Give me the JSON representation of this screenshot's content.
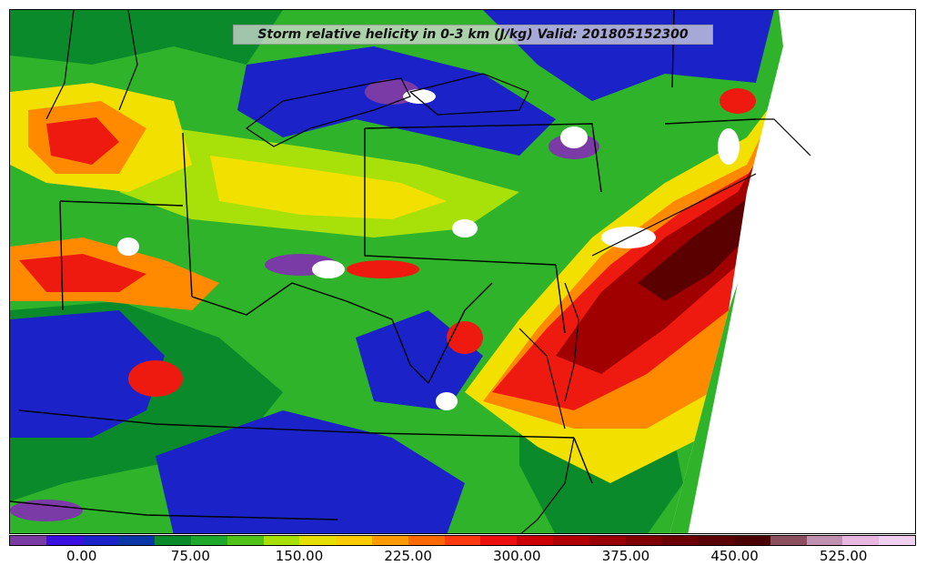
{
  "title": "Storm relative helicity in 0-3 km (J/kg) Valid: 201805152300",
  "colorbar": {
    "colors": [
      "#7a3ba6",
      "#3a10e0",
      "#1a22c8",
      "#0a36a8",
      "#0a8a2a",
      "#1fa82e",
      "#4fc31a",
      "#a8e00a",
      "#e6e000",
      "#ffcc00",
      "#ff9a00",
      "#ff6a00",
      "#ff3a10",
      "#ee1010",
      "#cc0000",
      "#b00000",
      "#990000",
      "#800000",
      "#6a0000",
      "#5a0000",
      "#4a0000",
      "#8a5060",
      "#c090b0",
      "#e8b8e0",
      "#f0d0f0"
    ],
    "tick_labels": [
      "0.00",
      "75.00",
      "150.00",
      "225.00",
      "300.00",
      "375.00",
      "450.00",
      "525.00"
    ],
    "tick_values": [
      0,
      75,
      150,
      225,
      300,
      375,
      450,
      525
    ],
    "range": [
      -50,
      575
    ]
  },
  "map": {
    "palette": {
      "purple": "#7a3ba6",
      "blue": "#1a22c8",
      "darkgreen": "#0a8a2a",
      "green": "#2fb32a",
      "lime": "#a8e00a",
      "yellow": "#f2e000",
      "orange": "#ff8a00",
      "red": "#ee1a10",
      "darkred": "#a00000",
      "maroon": "#5a0000",
      "white": "#ffffff"
    }
  }
}
